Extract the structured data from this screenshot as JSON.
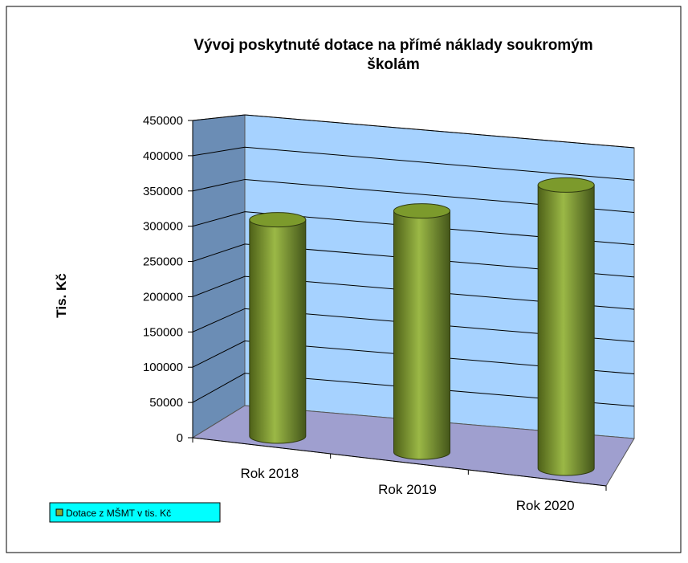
{
  "chart_data": {
    "type": "cylinder3d",
    "title": "Vývoj poskytnuté dotace na přímé náklady  soukromým školám",
    "y_label": "Tis. Kč",
    "categories": [
      "Rok 2018",
      "Rok 2019",
      "Rok 2020"
    ],
    "series": [
      {
        "name": "Dotace z MŠMT  v tis. Kč",
        "color": "#8aa636",
        "values": [
          330000,
          368000,
          432000
        ]
      }
    ],
    "ylim": [
      0,
      450000
    ],
    "yticks": [
      0,
      50000,
      100000,
      150000,
      200000,
      250000,
      300000,
      350000,
      400000,
      450000
    ],
    "grid": true,
    "legend": "bottom-left"
  }
}
